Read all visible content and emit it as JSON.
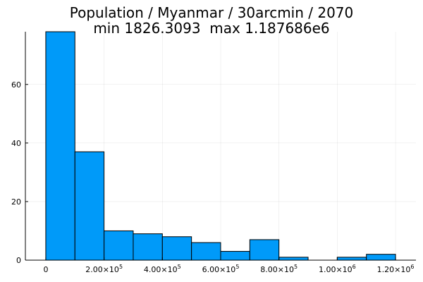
{
  "chart_data": {
    "type": "bar",
    "title": [
      "Population / Myanmar / 30arcmin / 2070",
      "min 1826.3093  max 1.187686e6"
    ],
    "xlabel": "",
    "ylabel": "",
    "bin_width": 100000,
    "x": [
      0,
      100000,
      200000,
      300000,
      400000,
      500000,
      600000,
      700000,
      800000,
      900000,
      1000000,
      1100000
    ],
    "values": [
      78,
      37,
      10,
      9,
      8,
      6,
      3,
      7,
      1,
      0,
      1,
      2
    ],
    "xlim": [
      -70000,
      1270000
    ],
    "ylim": [
      0,
      78
    ],
    "x_ticks": [
      {
        "value": 0,
        "mantissa": "0",
        "exp": ""
      },
      {
        "value": 200000,
        "mantissa": "2.00×10",
        "exp": "5"
      },
      {
        "value": 400000,
        "mantissa": "4.00×10",
        "exp": "5"
      },
      {
        "value": 600000,
        "mantissa": "6.00×10",
        "exp": "5"
      },
      {
        "value": 800000,
        "mantissa": "8.00×10",
        "exp": "5"
      },
      {
        "value": 1000000,
        "mantissa": "1.00×10",
        "exp": "6"
      },
      {
        "value": 1200000,
        "mantissa": "1.20×10",
        "exp": "6"
      }
    ],
    "y_ticks": [
      0,
      20,
      40,
      60
    ],
    "grid": true,
    "legend": "none",
    "bar_color": "#009af9",
    "edge_color": "#000000"
  }
}
